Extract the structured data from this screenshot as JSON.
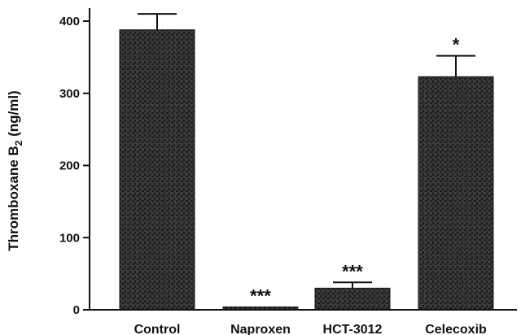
{
  "chart_data": {
    "type": "bar",
    "categories": [
      "Control",
      "Naproxen",
      "HCT-3012",
      "Celecoxib"
    ],
    "values": [
      388,
      4,
      30,
      323
    ],
    "errors": [
      22,
      0,
      8,
      29
    ],
    "annotations": [
      "",
      "***",
      "***",
      "*"
    ],
    "ylabel": "Thromboxane B",
    "ylabel_sub": "2",
    "ylabel_unit": " (ng/ml)",
    "ylim": [
      0,
      420
    ],
    "yticks": [
      "0",
      "100",
      "200",
      "300",
      "400"
    ],
    "legend": "none",
    "grid": false
  },
  "colors": {
    "bar_fill": "#3a3a3a",
    "bar_texture": "#1c1c1c",
    "axis": "#111111"
  }
}
